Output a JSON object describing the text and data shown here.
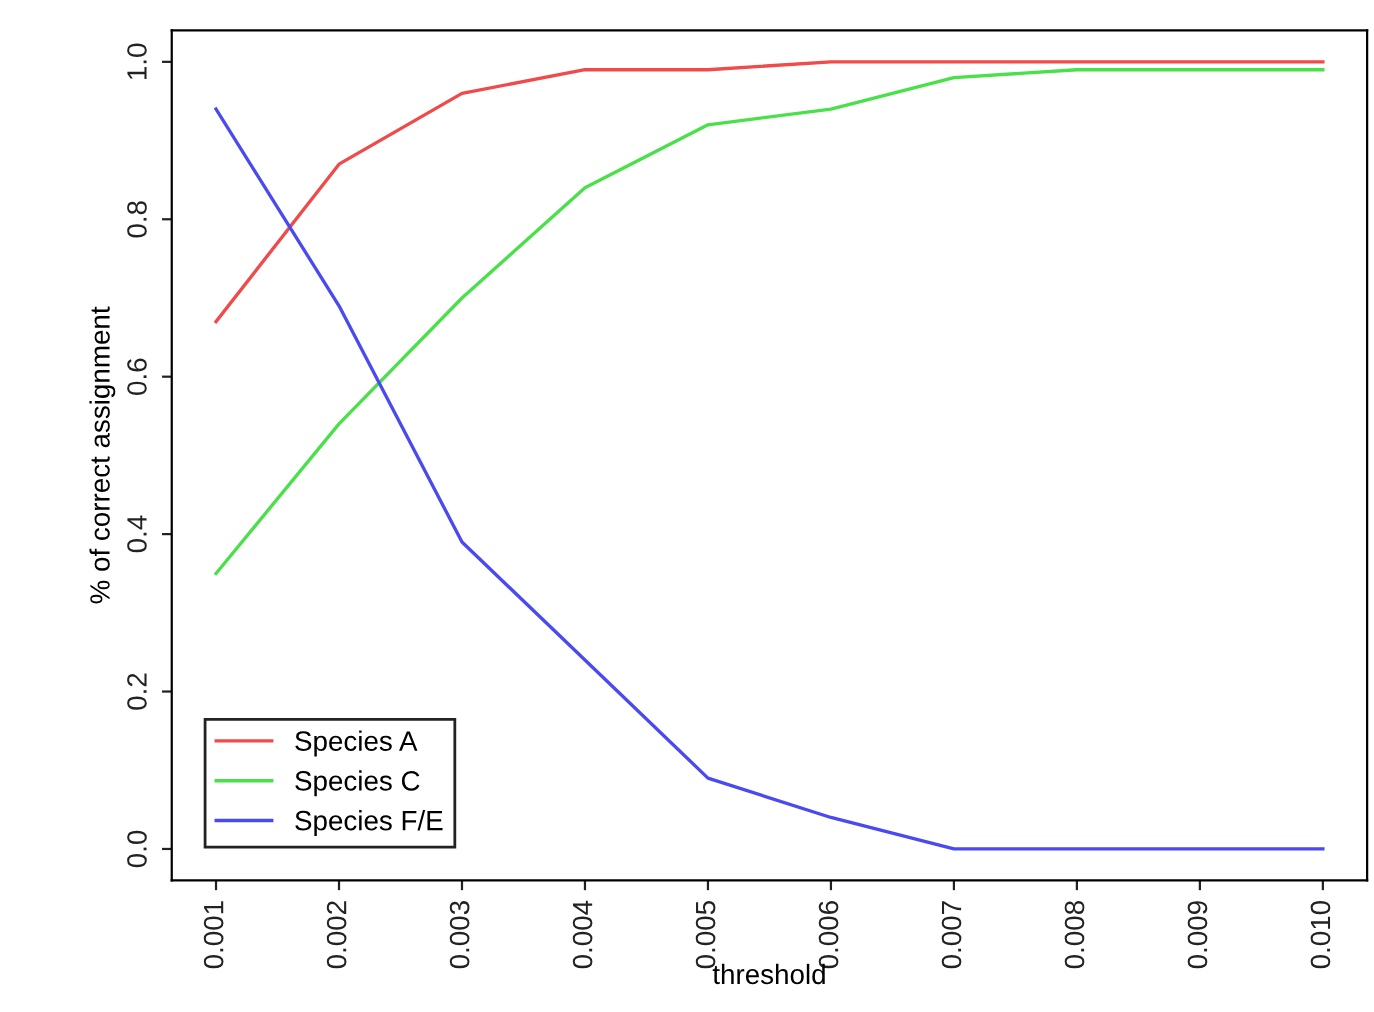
{
  "chart_data": {
    "type": "line",
    "xlabel": "threshold",
    "ylabel": "% of correct assignment",
    "x": [
      0.001,
      0.002,
      0.003,
      0.004,
      0.005,
      0.006,
      0.007,
      0.008,
      0.009,
      0.01
    ],
    "series": [
      {
        "name": "Species A",
        "color": "#f04a4a",
        "values": [
          0.67,
          0.87,
          0.96,
          0.99,
          0.99,
          1.0,
          1.0,
          1.0,
          1.0,
          1.0
        ]
      },
      {
        "name": "Species C",
        "color": "#4ae04a",
        "values": [
          0.35,
          0.54,
          0.7,
          0.84,
          0.92,
          0.94,
          0.98,
          0.99,
          0.99,
          0.99
        ]
      },
      {
        "name": "Species F/E",
        "color": "#4a4af0",
        "values": [
          0.94,
          0.69,
          0.39,
          0.24,
          0.09,
          0.04,
          0.0,
          0.0,
          0.0,
          0.0
        ]
      }
    ],
    "xlim": [
      0.00064,
      0.01036
    ],
    "ylim": [
      -0.04,
      1.04
    ],
    "xticks": [
      {
        "value": 0.001,
        "label": "0.001"
      },
      {
        "value": 0.002,
        "label": "0.002"
      },
      {
        "value": 0.003,
        "label": "0.003"
      },
      {
        "value": 0.004,
        "label": "0.004"
      },
      {
        "value": 0.005,
        "label": "0.005"
      },
      {
        "value": 0.006,
        "label": "0.006"
      },
      {
        "value": 0.007,
        "label": "0.007"
      },
      {
        "value": 0.008,
        "label": "0.008"
      },
      {
        "value": 0.009,
        "label": "0.009"
      },
      {
        "value": 0.01,
        "label": "0.010"
      }
    ],
    "yticks": [
      {
        "value": 0.0,
        "label": "0.0"
      },
      {
        "value": 0.2,
        "label": "0.2"
      },
      {
        "value": 0.4,
        "label": "0.4"
      },
      {
        "value": 0.6,
        "label": "0.6"
      },
      {
        "value": 0.8,
        "label": "0.8"
      },
      {
        "value": 1.0,
        "label": "1.0"
      }
    ],
    "grid": false,
    "legend": "bottom left",
    "line_style": "solid"
  }
}
